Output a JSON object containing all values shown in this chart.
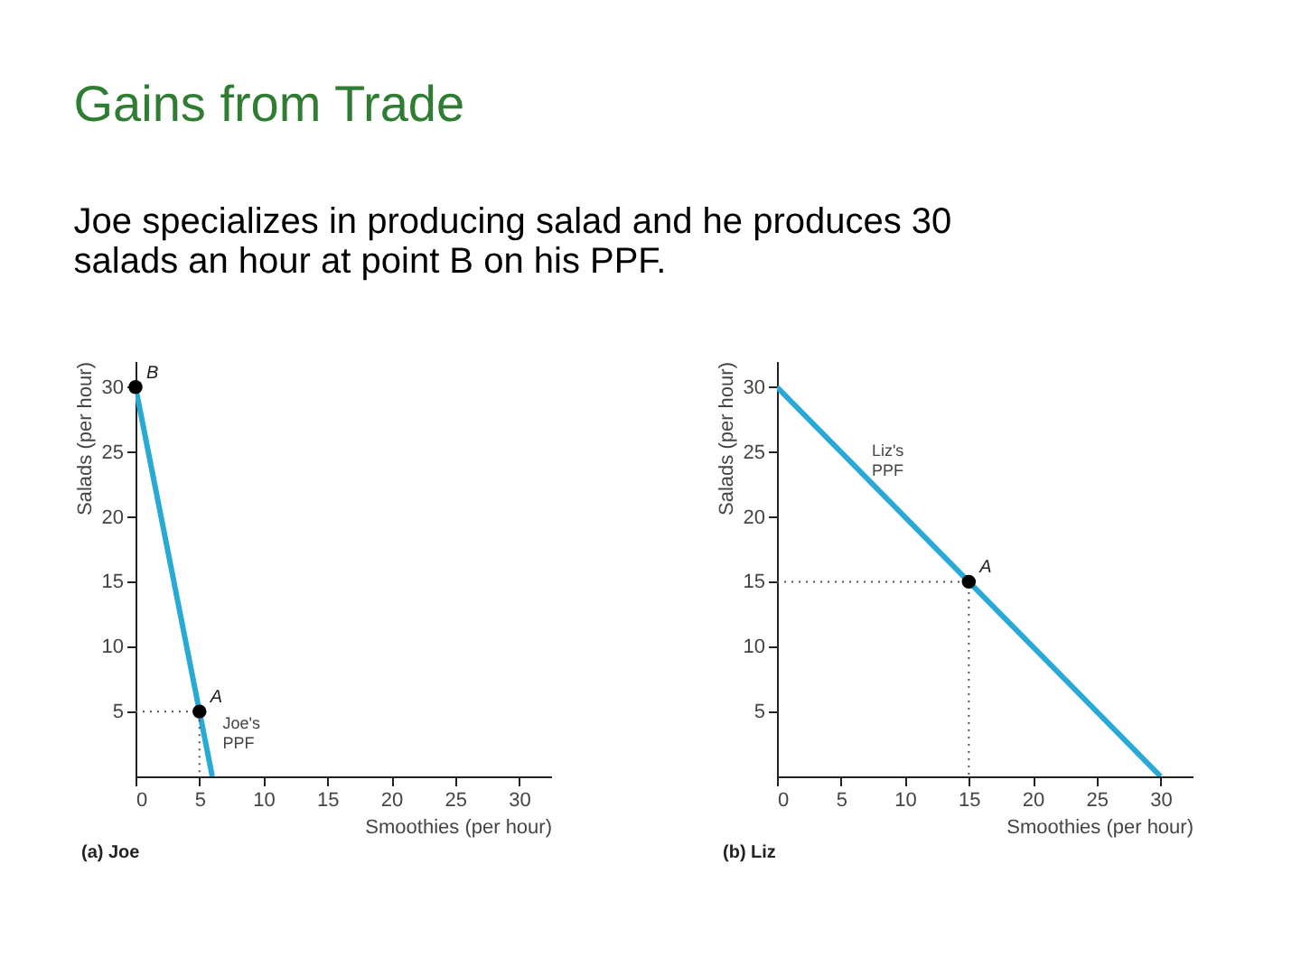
{
  "chart_data": [
    {
      "type": "line",
      "title": "Gains from Trade",
      "subtitle": "Joe specializes in producing salad and he produces 30 salads an hour at point B on his PPF.",
      "xlabel": "Smoothies (per hour)",
      "ylabel": "Salads (per hour)",
      "xlim": [
        0,
        32.5
      ],
      "ylim": [
        0,
        32
      ],
      "xticks": [
        0,
        5,
        10,
        15,
        20,
        25,
        30
      ],
      "yticks": [
        5,
        10,
        15,
        20,
        25,
        30
      ],
      "grid": false,
      "series": [
        {
          "name": "Joe's PPF",
          "color": "#29a9d6",
          "x": [
            0,
            6
          ],
          "values": [
            30,
            0
          ]
        },
        {
          "color": "#555555",
          "x": [
            0,
            5,
            5
          ],
          "values": [
            5,
            5,
            0
          ],
          "line_style": "dotted"
        },
        {
          "type": "scatter",
          "marker": "circle",
          "color": "#000000",
          "x": [
            0,
            5
          ],
          "values": [
            30,
            5
          ]
        }
      ],
      "annotations": [
        {
          "text": "B",
          "x": 0,
          "y": 30
        },
        {
          "text": "A",
          "x": 5,
          "y": 5
        },
        "(a) Joe"
      ]
    },
    {
      "type": "line",
      "xlabel": "Smoothies (per hour)",
      "ylabel": "Salads (per hour)",
      "xlim": [
        0,
        32.5
      ],
      "ylim": [
        0,
        32
      ],
      "xticks": [
        0,
        5,
        10,
        15,
        20,
        25,
        30
      ],
      "yticks": [
        5,
        10,
        15,
        20,
        25,
        30
      ],
      "grid": false,
      "series": [
        {
          "name": "Liz's PPF",
          "color": "#29a9d6",
          "x": [
            0,
            30
          ],
          "values": [
            30,
            0
          ]
        },
        {
          "color": "#555555",
          "x": [
            0,
            15,
            15
          ],
          "values": [
            15,
            15,
            0
          ],
          "line_style": "dotted"
        },
        {
          "type": "scatter",
          "marker": "circle",
          "color": "#000000",
          "x": [
            15
          ],
          "values": [
            15
          ]
        }
      ],
      "annotations": [
        {
          "text": "A",
          "x": 15,
          "y": 15
        },
        "(b) Liz"
      ]
    }
  ]
}
